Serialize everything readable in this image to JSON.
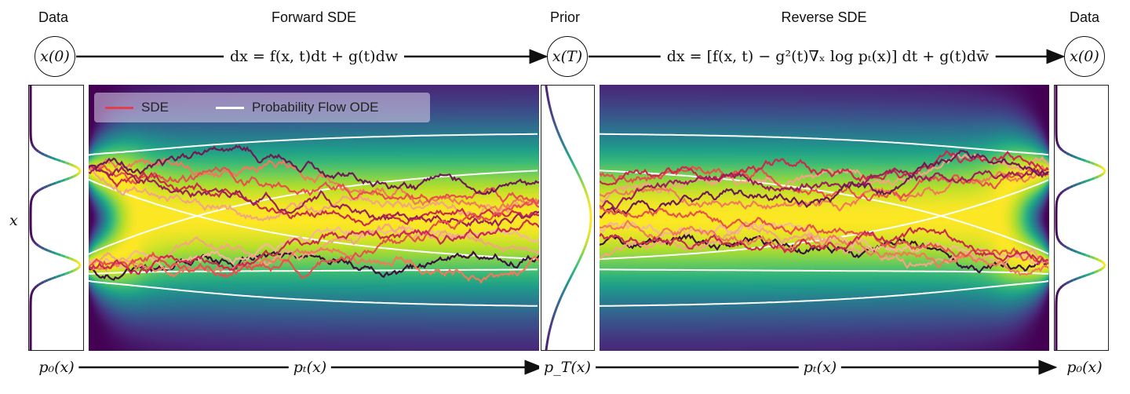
{
  "header": {
    "data_left_title": "Data",
    "forward_title": "Forward SDE",
    "prior_title": "Prior",
    "reverse_title": "Reverse SDE",
    "data_right_title": "Data",
    "node_x0_left": "x(0)",
    "node_xT": "x(T)",
    "node_x0_right": "x(0)",
    "forward_equation": "dx = f(x, t)dt + g(t)dw",
    "reverse_equation": "dx = [f(x, t) − g²(t)∇ₓ log pₜ(x)] dt + g(t)dw̄"
  },
  "axis": {
    "y_label": "x"
  },
  "legend": {
    "sde_label": "SDE",
    "ode_label": "Probability Flow ODE",
    "sde_color": "#e0404a",
    "ode_color": "#ffffff"
  },
  "bottom": {
    "p0_left": "p₀(x)",
    "pt_forward": "pₜ(x)",
    "pT": "p_T(x)",
    "pt_reverse": "pₜ(x)",
    "p0_right": "p₀(x)"
  },
  "colormap": "viridis",
  "trajectory_colors": [
    "#f4a582",
    "#f07a5a",
    "#e8504c",
    "#c92a4e",
    "#9c1f5c",
    "#6e1a56",
    "#3d1240",
    "#f5b79a"
  ]
}
